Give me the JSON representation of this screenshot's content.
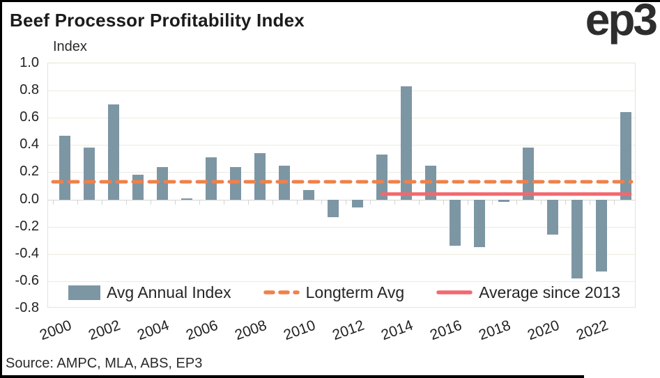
{
  "header": {
    "title": "Beef Processor Profitability Index",
    "logo": "ep3"
  },
  "source": "Source: AMPC, MLA, ABS, EP3",
  "legend": {
    "items": [
      {
        "label": "Avg Annual Index",
        "marker": "bar-swatch",
        "color": "#7d96a4"
      },
      {
        "label": "Longterm Avg",
        "marker": "dashed-line",
        "color": "#f0804a"
      },
      {
        "label": "Average since 2013",
        "marker": "solid-line",
        "color": "#f2686f"
      }
    ]
  },
  "chart_data": {
    "type": "bar",
    "title": "Beef Processor Profitability Index",
    "ylabel": "Index",
    "xlabel": "",
    "categories": [
      2000,
      2001,
      2002,
      2003,
      2004,
      2005,
      2006,
      2007,
      2008,
      2009,
      2010,
      2011,
      2012,
      2013,
      2014,
      2015,
      2016,
      2017,
      2018,
      2019,
      2020,
      2021,
      2022,
      2023
    ],
    "series": [
      {
        "name": "Avg Annual Index",
        "values": [
          0.47,
          0.38,
          0.7,
          0.18,
          0.24,
          0.01,
          0.31,
          0.24,
          0.34,
          0.25,
          0.07,
          -0.13,
          -0.06,
          0.33,
          0.83,
          0.25,
          -0.34,
          -0.35,
          -0.02,
          0.38,
          -0.26,
          -0.58,
          -0.53,
          0.64
        ]
      }
    ],
    "reference_lines": [
      {
        "name": "Longterm Avg",
        "value": 0.13,
        "style": "dashed",
        "color": "#f0804a",
        "start_year": 2000,
        "end_year": 2023
      },
      {
        "name": "Average since 2013",
        "value": 0.04,
        "style": "solid",
        "color": "#f2686f",
        "start_year": 2013,
        "end_year": 2023
      }
    ],
    "ylim": [
      -0.8,
      1.0
    ],
    "ytick_labels": [
      "1.0",
      "0.8",
      "0.6",
      "0.4",
      "0.2",
      "0.0",
      "-0.2",
      "-0.4",
      "-0.6",
      "-0.8"
    ],
    "ytick_values": [
      1.0,
      0.8,
      0.6,
      0.4,
      0.2,
      0.0,
      -0.2,
      -0.4,
      -0.6,
      -0.8
    ],
    "xtick_labels": [
      "2000",
      "2002",
      "2004",
      "2006",
      "2008",
      "2010",
      "2012",
      "2014",
      "2016",
      "2018",
      "2020",
      "2022"
    ],
    "grid": true,
    "legend_position": "bottom-inside",
    "colors": {
      "bar": "#7d96a4",
      "longterm_avg_line": "#f0804a",
      "avg_since_2013_line": "#f2686f",
      "grid": "#edeade",
      "zero_line": "#d4d4d4",
      "plot_border": "#e5e2d6",
      "text": "#212121",
      "frame": "#000000"
    }
  }
}
